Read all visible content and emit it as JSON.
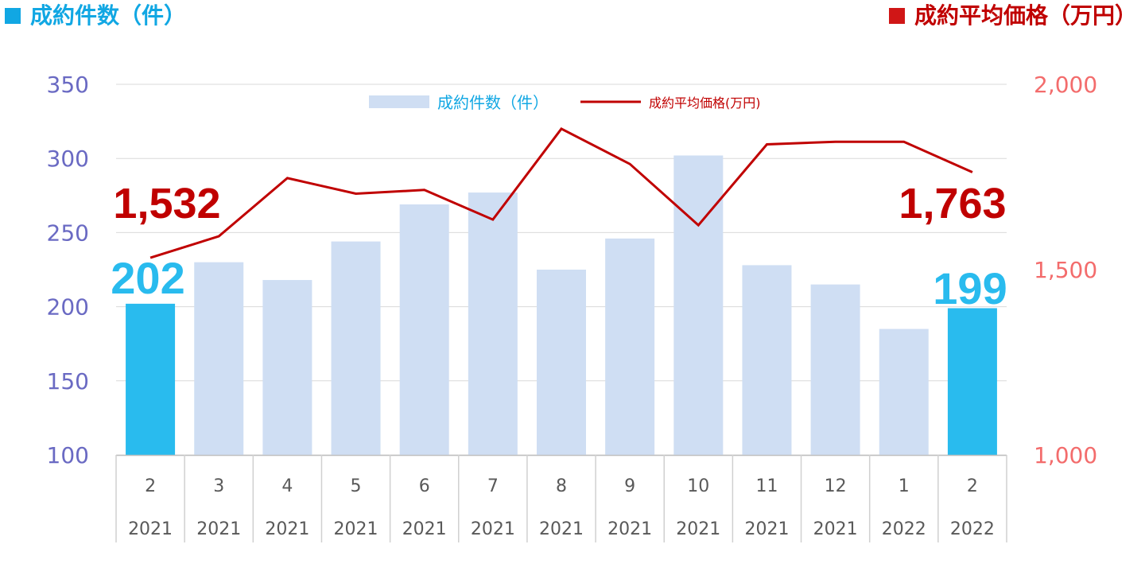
{
  "titles": {
    "left": "成約件数（件）",
    "right": "成約平均価格（万円）"
  },
  "colors": {
    "bar": "#cfdef3",
    "bar_highlight": "#29bbee",
    "line": "#c00000",
    "left_axis": "#6a6ac3",
    "right_axis": "#f36c6c",
    "left_title": "#11a7e3",
    "right_title": "#c00000"
  },
  "chart_data": {
    "type": "bar",
    "categories": [
      [
        "2",
        "2021"
      ],
      [
        "3",
        "2021"
      ],
      [
        "4",
        "2021"
      ],
      [
        "5",
        "2021"
      ],
      [
        "6",
        "2021"
      ],
      [
        "7",
        "2021"
      ],
      [
        "8",
        "2021"
      ],
      [
        "9",
        "2021"
      ],
      [
        "10",
        "2021"
      ],
      [
        "11",
        "2021"
      ],
      [
        "12",
        "2021"
      ],
      [
        "1",
        "2022"
      ],
      [
        "2",
        "2022"
      ]
    ],
    "series": [
      {
        "name": "成約件数（件）",
        "type": "bar",
        "axis": "left",
        "values": [
          202,
          230,
          218,
          244,
          269,
          277,
          225,
          246,
          302,
          228,
          215,
          185,
          199
        ],
        "highlight_indices": [
          0,
          12
        ]
      },
      {
        "name": "成約平均価格(万円)",
        "type": "line",
        "axis": "right",
        "values": [
          1532,
          1590,
          1747,
          1705,
          1715,
          1635,
          1880,
          1785,
          1620,
          1838,
          1845,
          1845,
          1763
        ]
      }
    ],
    "y_left": {
      "min": 100,
      "max": 350,
      "ticks": [
        "100",
        "150",
        "200",
        "250",
        "300",
        "350"
      ]
    },
    "y_right": {
      "min": 1000,
      "max": 2000,
      "ticks": [
        "1,000",
        "1,500",
        "2,000"
      ]
    },
    "annotations": {
      "bar_start": "202",
      "bar_end": "199",
      "line_start": "1,532",
      "line_end": "1,763"
    },
    "legend": {
      "position": "top-center"
    },
    "grid": true
  }
}
